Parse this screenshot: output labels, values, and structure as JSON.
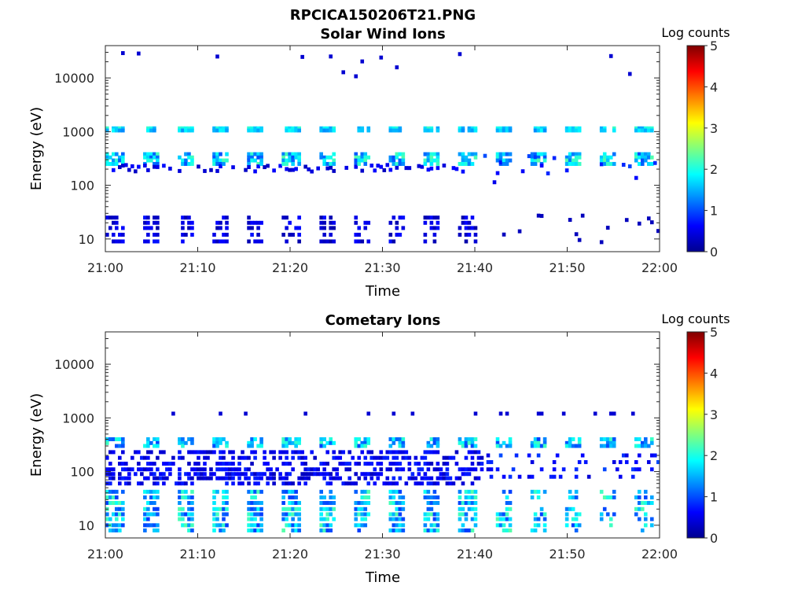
{
  "figure_title": "RPCICA150206T21.PNG",
  "chart_data": [
    {
      "type": "heatmap",
      "title": "Solar Wind Ions",
      "xlabel": "Time",
      "ylabel": "Energy (eV)",
      "x_ticks": [
        "21:00",
        "21:10",
        "21:20",
        "21:30",
        "21:40",
        "21:50",
        "22:00"
      ],
      "x_range": [
        "21:00",
        "22:00"
      ],
      "y_scale": "log",
      "y_ticks": [
        "10",
        "100",
        "1000",
        "10000"
      ],
      "y_range": [
        5.8,
        40000
      ],
      "colorbar": {
        "label": "Log counts",
        "ticks": [
          "0",
          "1",
          "2",
          "3",
          "4",
          "5"
        ],
        "range": [
          0,
          5
        ],
        "colormap": "jet"
      },
      "features": [
        {
          "description_energy_eV": 1150,
          "log_counts": 2.0,
          "pattern": "periodic"
        },
        {
          "description_energy_eV": 320,
          "log_counts": 2.3,
          "pattern": "periodic"
        },
        {
          "description_energy_eV": 15,
          "log_counts": 0.4,
          "pattern": "periodic, first half of hour"
        }
      ]
    },
    {
      "type": "heatmap",
      "title": "Cometary Ions",
      "xlabel": "Time",
      "ylabel": "Energy (eV)",
      "x_ticks": [
        "21:00",
        "21:10",
        "21:20",
        "21:30",
        "21:40",
        "21:50",
        "22:00"
      ],
      "x_range": [
        "21:00",
        "22:00"
      ],
      "y_scale": "log",
      "y_ticks": [
        "10",
        "100",
        "1000",
        "10000"
      ],
      "y_range": [
        5.8,
        40000
      ],
      "colorbar": {
        "label": "Log counts",
        "ticks": [
          "0",
          "1",
          "2",
          "3",
          "4",
          "5"
        ],
        "range": [
          0,
          5
        ],
        "colormap": "jet"
      },
      "features": [
        {
          "description_energy_eV": 330,
          "log_counts": 2.0,
          "pattern": "periodic"
        },
        {
          "description_energy_eV": 100,
          "log_counts": 0.8,
          "pattern": "broad"
        },
        {
          "description_energy_eV": 15,
          "log_counts": 2.0,
          "pattern": "periodic columns"
        }
      ]
    }
  ]
}
